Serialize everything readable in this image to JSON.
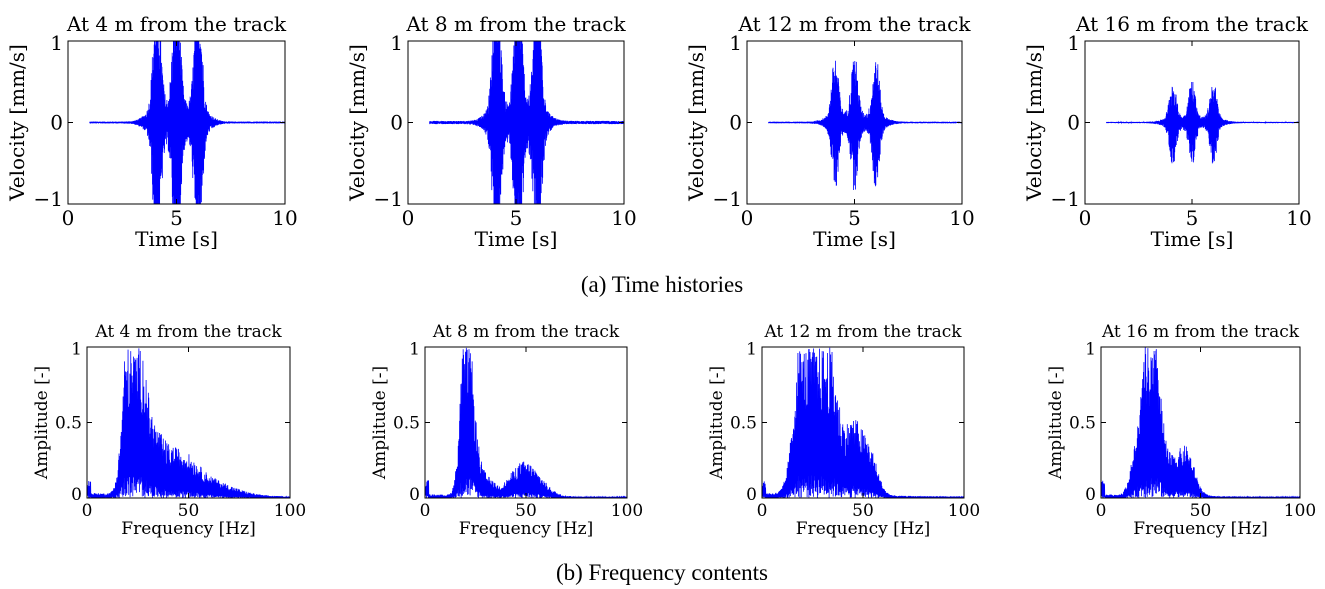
{
  "captions": {
    "a": "(a)  Time histories",
    "b": "(b)  Frequency contents"
  },
  "line_color": "#0000ff",
  "chart_data": [
    {
      "type": "line",
      "group": "a",
      "title": "At 4 m from the track",
      "xlabel": "Time [s]",
      "ylabel": "Velocity [mm/s]",
      "xlim": [
        0,
        10
      ],
      "ylim": [
        -1,
        1
      ],
      "xticks": [
        0,
        5,
        10
      ],
      "yticks": [
        -1,
        0,
        1
      ],
      "xtick_labels": [
        "0",
        "5",
        "10"
      ],
      "ytick_labels": [
        "−1",
        "0",
        "1"
      ],
      "grid": false,
      "signal": {
        "kind": "time",
        "events": [
          4.1,
          5.0,
          6.0
        ],
        "peak": 1.6,
        "noise": 0.012,
        "burst_width": 0.16
      }
    },
    {
      "type": "line",
      "group": "a",
      "title": "At 8 m from the track",
      "xlabel": "Time [s]",
      "ylabel": "Velocity [mm/s]",
      "xlim": [
        0,
        10
      ],
      "ylim": [
        -1,
        1
      ],
      "xticks": [
        0,
        5,
        10
      ],
      "yticks": [
        -1,
        0,
        1
      ],
      "xtick_labels": [
        "0",
        "5",
        "10"
      ],
      "ytick_labels": [
        "−1",
        "0",
        "1"
      ],
      "grid": false,
      "signal": {
        "kind": "time",
        "events": [
          4.1,
          5.1,
          6.0
        ],
        "peak": 1.6,
        "noise": 0.02,
        "burst_width": 0.17
      }
    },
    {
      "type": "line",
      "group": "a",
      "title": "At 12 m from the track",
      "xlabel": "Time [s]",
      "ylabel": "Velocity [mm/s]",
      "xlim": [
        0,
        10
      ],
      "ylim": [
        -1,
        1
      ],
      "xticks": [
        0,
        5,
        10
      ],
      "yticks": [
        -1,
        0,
        1
      ],
      "xtick_labels": [
        "0",
        "5",
        "10"
      ],
      "ytick_labels": [
        "−1",
        "0",
        "1"
      ],
      "grid": false,
      "signal": {
        "kind": "time",
        "events": [
          4.1,
          5.0,
          6.0
        ],
        "peak": 0.75,
        "noise": 0.01,
        "burst_width": 0.15
      }
    },
    {
      "type": "line",
      "group": "a",
      "title": "At 16 m from the track",
      "xlabel": "Time [s]",
      "ylabel": "Velocity [mm/s]",
      "xlim": [
        0,
        10
      ],
      "ylim": [
        -1,
        1
      ],
      "xticks": [
        0,
        5,
        10
      ],
      "yticks": [
        -1,
        0,
        1
      ],
      "xtick_labels": [
        "0",
        "5",
        "10"
      ],
      "ytick_labels": [
        "−1",
        "0",
        "1"
      ],
      "grid": false,
      "signal": {
        "kind": "time",
        "events": [
          4.1,
          5.0,
          6.0
        ],
        "peak": 0.47,
        "noise": 0.008,
        "burst_width": 0.15
      }
    },
    {
      "type": "line",
      "group": "b",
      "title": "At 4 m from the track",
      "xlabel": "Frequency [Hz]",
      "ylabel": "Amplitude [-]",
      "xlim": [
        0,
        100
      ],
      "ylim": [
        0,
        1
      ],
      "xticks": [
        0,
        50,
        100
      ],
      "yticks": [
        0,
        0.5,
        1
      ],
      "xtick_labels": [
        "0",
        "50",
        "100"
      ],
      "ytick_labels": [
        "0",
        "0.5",
        "1"
      ],
      "grid": false,
      "signal": {
        "kind": "spectrum",
        "floor": 0.03,
        "peaks": [
          [
            21,
            1.0,
            3
          ],
          [
            25,
            0.85,
            4
          ],
          [
            33,
            0.3,
            5
          ],
          [
            45,
            0.25,
            8
          ],
          [
            60,
            0.1,
            12
          ]
        ]
      }
    },
    {
      "type": "line",
      "group": "b",
      "title": "At 8 m from the track",
      "xlabel": "Frequency [Hz]",
      "ylabel": "Amplitude [-]",
      "xlim": [
        0,
        100
      ],
      "ylim": [
        0,
        1
      ],
      "xticks": [
        0,
        50,
        100
      ],
      "yticks": [
        0,
        0.5,
        1
      ],
      "xtick_labels": [
        "0",
        "50",
        "100"
      ],
      "ytick_labels": [
        "0",
        "0.5",
        "1"
      ],
      "grid": false,
      "signal": {
        "kind": "spectrum",
        "floor": 0.02,
        "peaks": [
          [
            20,
            1.0,
            2.5
          ],
          [
            23,
            0.45,
            3
          ],
          [
            30,
            0.12,
            4
          ],
          [
            47,
            0.18,
            6
          ],
          [
            55,
            0.1,
            6
          ]
        ]
      }
    },
    {
      "type": "line",
      "group": "b",
      "title": "At 12 m from the track",
      "xlabel": "Frequency [Hz]",
      "ylabel": "Amplitude [-]",
      "xlim": [
        0,
        100
      ],
      "ylim": [
        0,
        1
      ],
      "xticks": [
        0,
        50,
        100
      ],
      "yticks": [
        0,
        0.5,
        1
      ],
      "xtick_labels": [
        "0",
        "50",
        "100"
      ],
      "ytick_labels": [
        "0",
        "0.5",
        "1"
      ],
      "grid": false,
      "signal": {
        "kind": "spectrum",
        "floor": 0.03,
        "peaks": [
          [
            20,
            1.0,
            4
          ],
          [
            28,
            0.95,
            5
          ],
          [
            35,
            0.55,
            4
          ],
          [
            45,
            0.45,
            4
          ],
          [
            53,
            0.3,
            4
          ]
        ]
      }
    },
    {
      "type": "line",
      "group": "b",
      "title": "At 16 m from the track",
      "xlabel": "Frequency [Hz]",
      "ylabel": "Amplitude [-]",
      "xlim": [
        0,
        100
      ],
      "ylim": [
        0,
        1
      ],
      "xticks": [
        0,
        50,
        100
      ],
      "yticks": [
        0,
        0.5,
        1
      ],
      "xtick_labels": [
        "0",
        "50",
        "100"
      ],
      "ytick_labels": [
        "0",
        "0.5",
        "1"
      ],
      "grid": false,
      "signal": {
        "kind": "spectrum",
        "floor": 0.02,
        "peaks": [
          [
            24,
            1.0,
            3
          ],
          [
            28,
            0.6,
            3
          ],
          [
            18,
            0.3,
            3
          ],
          [
            35,
            0.2,
            4
          ],
          [
            43,
            0.3,
            4
          ]
        ]
      }
    }
  ]
}
